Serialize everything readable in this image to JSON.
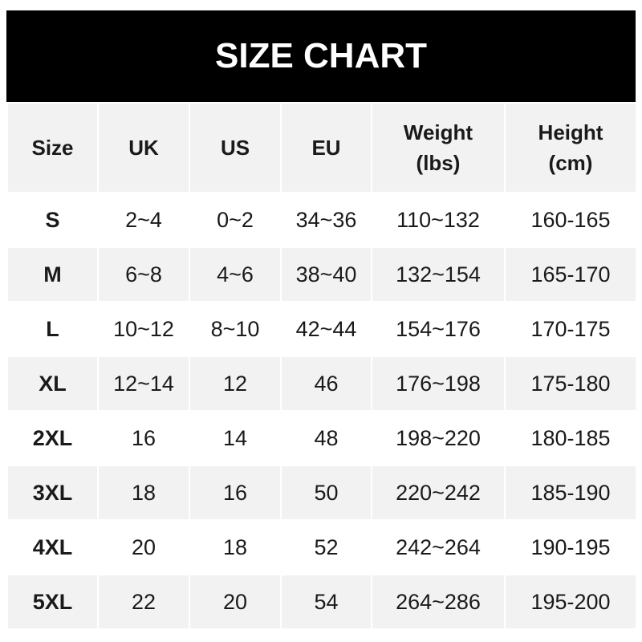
{
  "title": "SIZE CHART",
  "headers": [
    "Size",
    "UK",
    "US",
    "EU",
    "Weight\n(lbs)",
    "Height\n(cm)"
  ],
  "header_lines": [
    [
      "Size"
    ],
    [
      "UK"
    ],
    [
      "US"
    ],
    [
      "EU"
    ],
    [
      "Weight",
      "(lbs)"
    ],
    [
      "Height",
      "(cm)"
    ]
  ],
  "rows": [
    [
      "S",
      "2~4",
      "0~2",
      "34~36",
      "110~132",
      "160-165"
    ],
    [
      "M",
      "6~8",
      "4~6",
      "38~40",
      "132~154",
      "165-170"
    ],
    [
      "L",
      "10~12",
      "8~10",
      "42~44",
      "154~176",
      "170-175"
    ],
    [
      "XL",
      "12~14",
      "12",
      "46",
      "176~198",
      "175-180"
    ],
    [
      "2XL",
      "16",
      "14",
      "48",
      "198~220",
      "180-185"
    ],
    [
      "3XL",
      "18",
      "16",
      "50",
      "220~242",
      "185-190"
    ],
    [
      "4XL",
      "20",
      "18",
      "52",
      "242~264",
      "190-195"
    ],
    [
      "5XL",
      "22",
      "20",
      "54",
      "264~286",
      "195-200"
    ]
  ],
  "colors": {
    "title_bg": "#000000",
    "header_bg": "#f2f2f2",
    "alt_row_bg": "#f2f2f2"
  }
}
